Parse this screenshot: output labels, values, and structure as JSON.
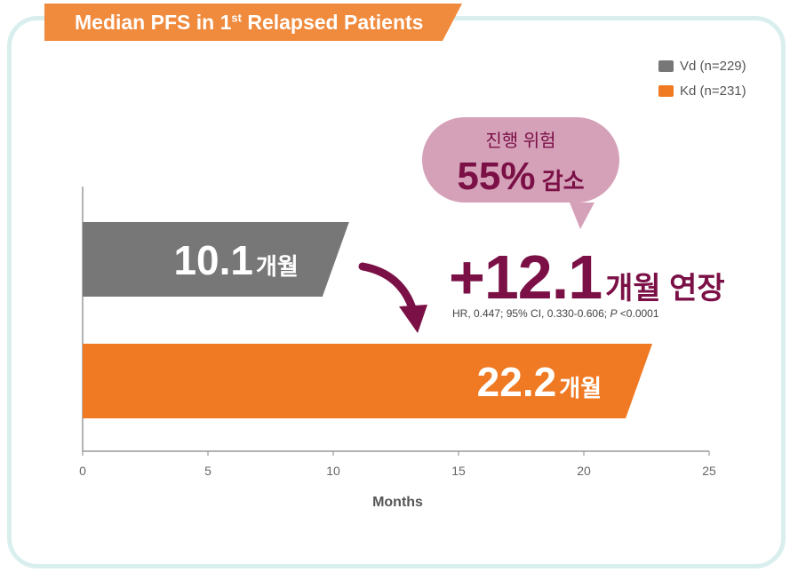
{
  "title": {
    "prefix": "Median PFS in 1",
    "sup": "st",
    "suffix": " Relapsed Patients"
  },
  "legend": [
    {
      "label": "Vd (n=229)",
      "color": "#777777"
    },
    {
      "label": "Kd (n=231)",
      "color": "#f07a23"
    }
  ],
  "bubble": {
    "line1": "진행 위험",
    "percent": "55%",
    "line2_suffix": " 감소"
  },
  "callout": {
    "value": "+12.1",
    "unit": "개월 연장"
  },
  "stat": {
    "prefix": "HR, 0.447; 95% CI, 0.330-0.606; ",
    "p_label": "P",
    "p_value": " <0.0001"
  },
  "chart_data": {
    "type": "bar",
    "orientation": "horizontal",
    "categories": [
      "Vd (n=229)",
      "Kd (n=231)"
    ],
    "values": [
      10.1,
      22.2
    ],
    "value_labels": [
      {
        "number": "10.1",
        "unit": "개월"
      },
      {
        "number": "22.2",
        "unit": "개월"
      }
    ],
    "colors": [
      "#777777",
      "#f07a23"
    ],
    "xlabel": "Months",
    "xlim": [
      0,
      25
    ],
    "xticks": [
      0,
      5,
      10,
      15,
      20,
      25
    ],
    "grid": false,
    "legend_position": "top-right"
  }
}
